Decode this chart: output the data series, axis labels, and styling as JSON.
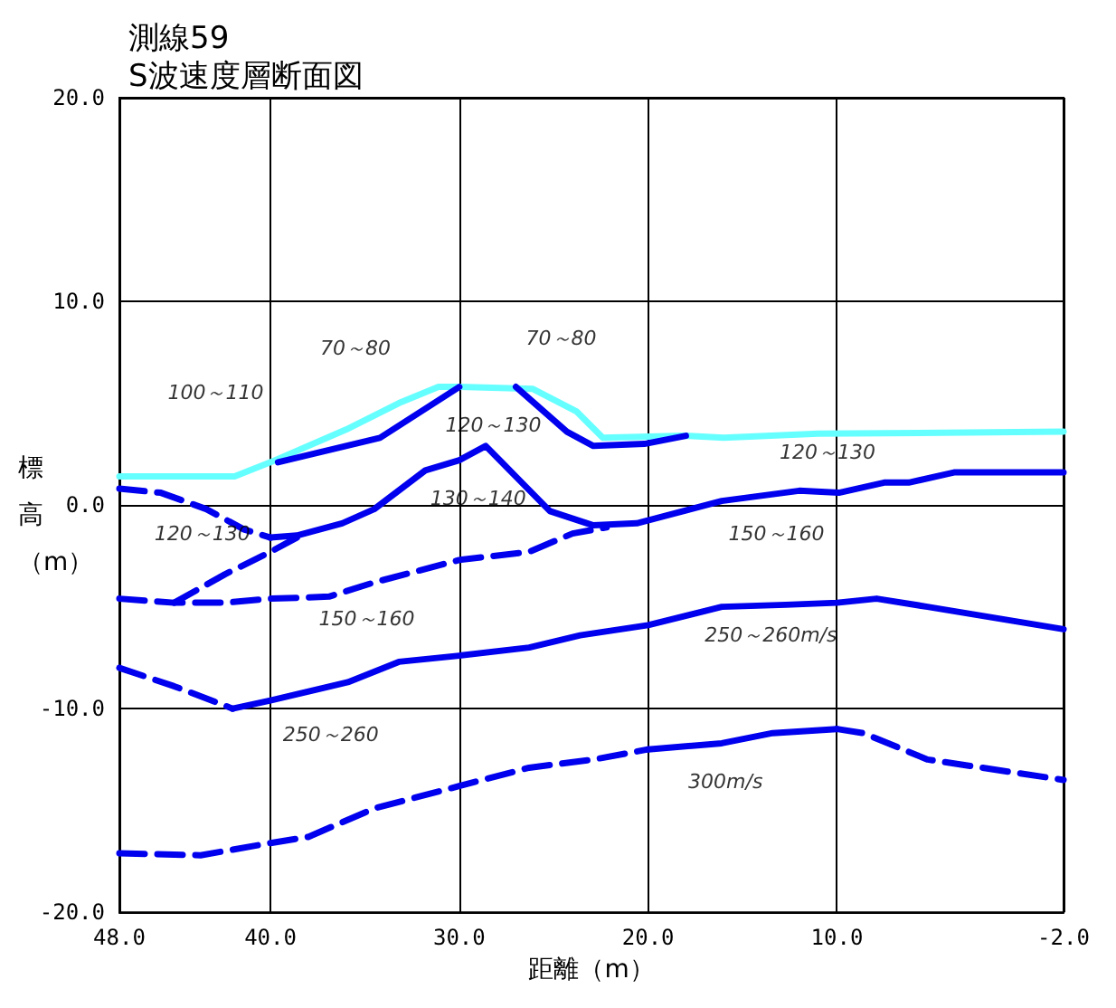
{
  "chart_data": {
    "type": "line",
    "title": "測線59",
    "subtitle": "S波速度層断面図",
    "xlabel": "距離（m）",
    "ylabel": "標高（m）",
    "xlim": [
      48,
      -2
    ],
    "ylim": [
      -20,
      20
    ],
    "xticks": [
      {
        "value": 48,
        "label": "48.0"
      },
      {
        "value": 40,
        "label": "40.0"
      },
      {
        "value": 30,
        "label": "30.0"
      },
      {
        "value": 20,
        "label": "20.0"
      },
      {
        "value": 10,
        "label": "10.0"
      },
      {
        "value": -2,
        "label": "-2.0"
      }
    ],
    "yticks": [
      {
        "value": -20,
        "label": "-20.0"
      },
      {
        "value": -10,
        "label": "-10.0"
      },
      {
        "value": 0,
        "label": "0.0"
      },
      {
        "value": 10,
        "label": "10.0"
      },
      {
        "value": 20,
        "label": "20.0"
      }
    ],
    "grid": true,
    "marker": "none",
    "series": [
      {
        "color": "#66ffff",
        "line_style": "solid",
        "x": [
          48,
          41.9,
          40,
          36,
          33.2,
          31.1,
          30,
          26.1,
          23.8,
          22.4,
          18,
          16,
          11,
          -2
        ],
        "values": [
          1.4,
          1.4,
          2.1,
          3.7,
          5.0,
          5.8,
          5.8,
          5.7,
          4.6,
          3.3,
          3.4,
          3.3,
          3.5,
          3.6
        ]
      },
      {
        "color": "#0000ee",
        "line_style": "solid",
        "x": [
          39.6,
          34.2,
          30
        ],
        "values": [
          2.1,
          3.3,
          5.8
        ]
      },
      {
        "color": "#0000ee",
        "line_style": "solid",
        "x": [
          27,
          24.3,
          22.9,
          20.2,
          18
        ],
        "values": [
          5.8,
          3.6,
          2.9,
          3.0,
          3.4
        ]
      },
      {
        "color": "#0000ee",
        "line_style": "dashed",
        "x": [
          48,
          45.8,
          43.4,
          41.4,
          40
        ],
        "values": [
          0.8,
          0.6,
          -0.2,
          -1.2,
          -1.6
        ]
      },
      {
        "color": "#0000ee",
        "line_style": "solid",
        "x": [
          40,
          38.6,
          36.2,
          34.5,
          31.8,
          30,
          28.6,
          26.9,
          25.2,
          22.9,
          20.6,
          16.1,
          12,
          9.9,
          7.5,
          6.2,
          3.8,
          -2
        ],
        "values": [
          -1.6,
          -1.5,
          -0.9,
          -0.2,
          1.7,
          2.2,
          2.9,
          1.3,
          -0.3,
          -1.0,
          -0.9,
          0.2,
          0.7,
          0.6,
          1.1,
          1.1,
          1.6,
          1.6
        ]
      },
      {
        "color": "#0000ee",
        "line_style": "dashed",
        "x": [
          45.1,
          42.4,
          40,
          38.6
        ],
        "values": [
          -4.8,
          -3.4,
          -2.3,
          -1.6
        ]
      },
      {
        "color": "#0000ee",
        "line_style": "dashed",
        "x": [
          48,
          45.1,
          42.4,
          40,
          36.9,
          34.5,
          30,
          26.3,
          24,
          22.2
        ],
        "values": [
          -4.6,
          -4.8,
          -4.8,
          -4.6,
          -4.5,
          -3.8,
          -2.7,
          -2.3,
          -1.4,
          -1.1
        ]
      },
      {
        "color": "#0000ee",
        "line_style": "dashed",
        "x": [
          48,
          45.1,
          42
        ],
        "values": [
          -8.0,
          -8.9,
          -10.0
        ]
      },
      {
        "color": "#0000ee",
        "line_style": "solid",
        "x": [
          42,
          40,
          35.9,
          33.2,
          30,
          26.3,
          23.6,
          20,
          16.1,
          12.7,
          10,
          7.9,
          5.2,
          -2
        ],
        "values": [
          -10.0,
          -9.6,
          -8.7,
          -7.7,
          -7.4,
          -7.0,
          -6.4,
          -5.9,
          -5.0,
          -4.9,
          -4.8,
          -4.6,
          -5.0,
          -6.1
        ]
      },
      {
        "color": "#0000ee",
        "line_style": "dashed",
        "x": [
          48,
          43.7,
          40,
          38,
          34.5,
          30,
          26.3,
          22.9,
          20
        ],
        "values": [
          -17.1,
          -17.2,
          -16.6,
          -16.3,
          -14.9,
          -13.8,
          -12.9,
          -12.5,
          -12.0
        ]
      },
      {
        "color": "#0000ee",
        "line_style": "solid",
        "x": [
          20,
          16.1,
          13.4,
          10
        ],
        "values": [
          -12.0,
          -11.7,
          -11.2,
          -11.0
        ]
      },
      {
        "color": "#0000ee",
        "line_style": "dashed",
        "x": [
          10,
          8.6,
          5.2,
          -2
        ],
        "values": [
          -11.0,
          -11.2,
          -12.5,
          -13.5
        ]
      }
    ],
    "annotations": [
      "100～110",
      "70～80",
      "70～80",
      "120～130",
      "130～140",
      "120～130",
      "120～130",
      "150～160",
      "150～160",
      "250～260m/s",
      "250～260",
      "300m/s"
    ]
  }
}
